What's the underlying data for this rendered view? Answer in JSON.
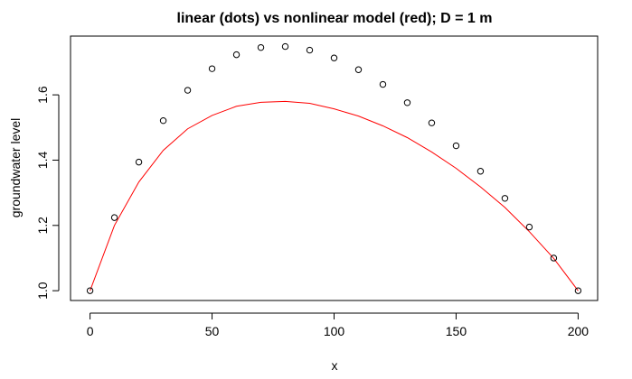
{
  "chart_data": {
    "type": "scatter",
    "title": "linear (dots) vs nonlinear model (red); D = 1 m",
    "xlabel": "x",
    "ylabel": "groundwater level",
    "xlim": [
      -8,
      208
    ],
    "ylim": [
      0.97,
      1.78
    ],
    "xticks": [
      0,
      50,
      100,
      150,
      200
    ],
    "yticks": [
      1.0,
      1.2,
      1.4,
      1.6
    ],
    "xtick_labels": [
      "0",
      "50",
      "100",
      "150",
      "200"
    ],
    "ytick_labels": [
      "1.0",
      "1.2",
      "1.4",
      "1.6"
    ],
    "grid": false,
    "series": [
      {
        "type": "scatter",
        "marker": "open-circle",
        "color": "#000000",
        "x": [
          0,
          10,
          20,
          30,
          40,
          50,
          60,
          70,
          80,
          90,
          100,
          110,
          120,
          130,
          140,
          150,
          160,
          170,
          180,
          190,
          200
        ],
        "y": [
          1.0,
          1.224,
          1.394,
          1.521,
          1.614,
          1.68,
          1.723,
          1.745,
          1.748,
          1.737,
          1.713,
          1.677,
          1.632,
          1.576,
          1.514,
          1.444,
          1.366,
          1.283,
          1.195,
          1.1,
          1.0
        ]
      },
      {
        "type": "line",
        "color": "#ff0000",
        "x": [
          0,
          10,
          20,
          30,
          40,
          50,
          60,
          70,
          80,
          90,
          100,
          110,
          120,
          130,
          140,
          150,
          160,
          170,
          180,
          190,
          200
        ],
        "y": [
          1.0,
          1.2,
          1.333,
          1.43,
          1.496,
          1.537,
          1.565,
          1.577,
          1.58,
          1.574,
          1.557,
          1.535,
          1.505,
          1.469,
          1.425,
          1.375,
          1.318,
          1.255,
          1.181,
          1.099,
          1.0
        ]
      }
    ]
  }
}
